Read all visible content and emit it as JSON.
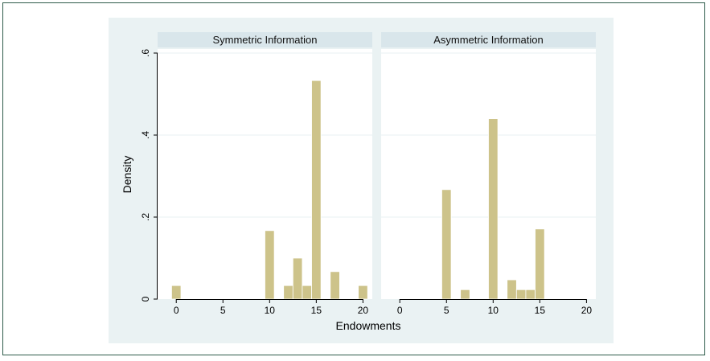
{
  "colors": {
    "outer_background": "#eaf2f3",
    "plot_background": "#ffffff",
    "panel_header": "#d9e6eb",
    "bar_fill": "#cdc38a",
    "bar_stroke": "#ffffff",
    "grid": "#eaf2f3",
    "axis": "#000000"
  },
  "chart_data": {
    "type": "bar",
    "xlabel": "Endowments",
    "ylabel": "Density",
    "xlim": [
      -2,
      21
    ],
    "ylim": [
      0,
      0.6
    ],
    "xticks": [
      0,
      5,
      10,
      15,
      20
    ],
    "xtick_labels": [
      "0",
      "5",
      "10",
      "15",
      "20"
    ],
    "yticks": [
      0,
      0.2,
      0.4,
      0.6
    ],
    "ytick_labels": [
      "0",
      ".2",
      ".4",
      ".6"
    ],
    "grid": true,
    "bin_width": 1,
    "panels": [
      {
        "title": "Symmetric Information",
        "bars": [
          {
            "x": 0,
            "density": 0.033
          },
          {
            "x": 10,
            "density": 0.167
          },
          {
            "x": 12,
            "density": 0.033
          },
          {
            "x": 13,
            "density": 0.1
          },
          {
            "x": 14,
            "density": 0.033
          },
          {
            "x": 15,
            "density": 0.533
          },
          {
            "x": 17,
            "density": 0.067
          },
          {
            "x": 20,
            "density": 0.033
          }
        ]
      },
      {
        "title": "Asymmetric Information",
        "bars": [
          {
            "x": 5,
            "density": 0.267
          },
          {
            "x": 7,
            "density": 0.023
          },
          {
            "x": 10,
            "density": 0.44
          },
          {
            "x": 12,
            "density": 0.047
          },
          {
            "x": 13,
            "density": 0.023
          },
          {
            "x": 14,
            "density": 0.023
          },
          {
            "x": 15,
            "density": 0.171
          }
        ]
      }
    ]
  }
}
